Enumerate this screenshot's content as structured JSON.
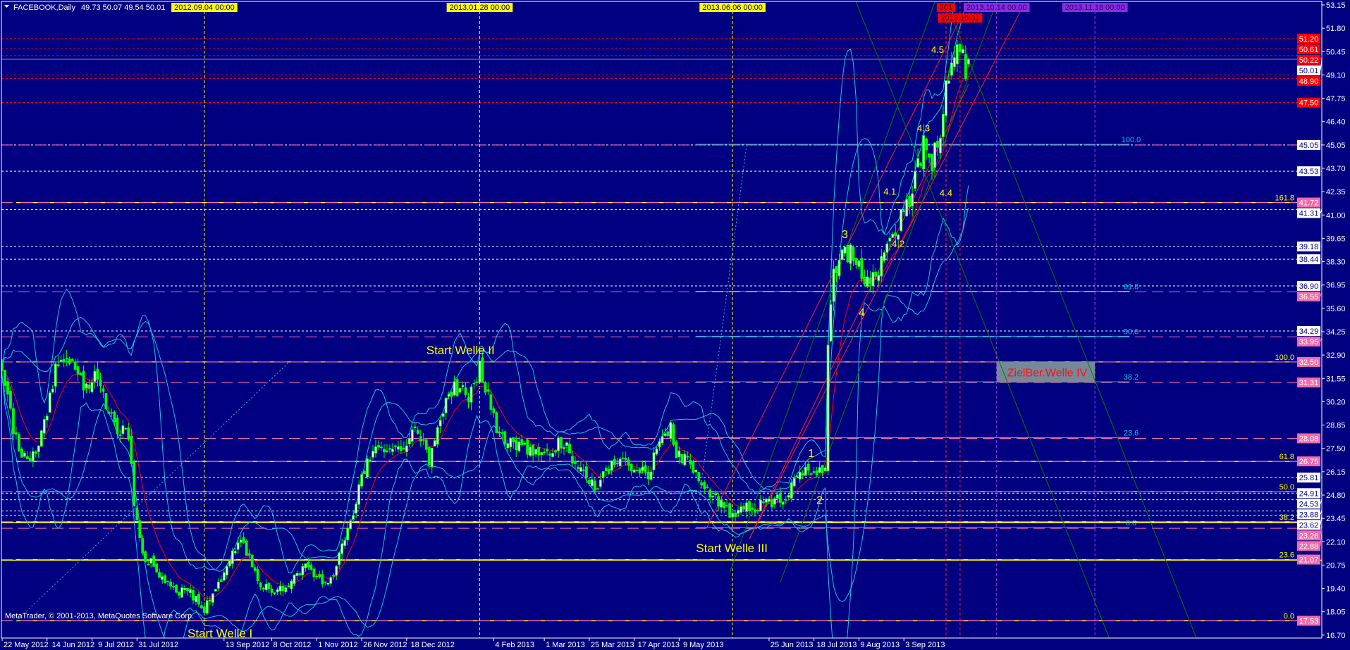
{
  "window": {
    "menu_icon": "triangle-down-icon",
    "title": "FACEBOOK,Daily",
    "ohlc": "49.73 50.07 49.54 50.01",
    "copyright": "MetaTrader, © 2001-2013, MetaQuotes Software Corp."
  },
  "colors": {
    "background": "#000080",
    "candle": "#00ff00",
    "moving_average": "#ff0000",
    "bollinger": "#20c0e0",
    "trend_red": "#ff2020",
    "trend_green": "#008000",
    "fib_pink": "#ff6eb4",
    "fib_yellow": "#ffff00",
    "fib_cyan": "#00c8f0",
    "annotation": "#ffff00",
    "target_box": "#778899",
    "target_text": "#ff1010"
  },
  "chart_data": {
    "type": "candlestick",
    "symbol": "FACEBOOK",
    "timeframe": "Daily",
    "last_bar": {
      "open": 49.73,
      "high": 50.07,
      "low": 49.54,
      "close": 50.01
    },
    "ylim": [
      16.7,
      53.15
    ],
    "grid": false,
    "price_ticks": [
      "53.15",
      "51.80",
      "50.45",
      "49.10",
      "47.75",
      "46.40",
      "45.05",
      "43.70",
      "42.35",
      "41.00",
      "39.65",
      "38.30",
      "36.95",
      "35.60",
      "34.25",
      "32.90",
      "31.55",
      "30.20",
      "28.85",
      "27.50",
      "26.15",
      "24.80",
      "23.45",
      "22.10",
      "20.75",
      "19.40",
      "18.05",
      "16.70"
    ],
    "date_ticks": [
      {
        "date": "2012-05-22",
        "label": "22 May 2012"
      },
      {
        "date": "2012-06-14",
        "label": "14 Jun 2012"
      },
      {
        "date": "2012-07-09",
        "label": "9 Jul 2012"
      },
      {
        "date": "2012-07-31",
        "label": "31 Jul 2012"
      },
      {
        "date": "2012-09-13",
        "label": "13 Sep 2012"
      },
      {
        "date": "2012-10-08",
        "label": "8 Oct 2012"
      },
      {
        "date": "2012-11-01",
        "label": "1 Nov 2012"
      },
      {
        "date": "2012-11-26",
        "label": "26 Nov 2012"
      },
      {
        "date": "2012-12-18",
        "label": "18 Dec 2012"
      },
      {
        "date": "2013-02-04",
        "label": "4 Feb 2013"
      },
      {
        "date": "2013-03-01",
        "label": "1 Mar 2013"
      },
      {
        "date": "2013-03-25",
        "label": "25 Mar 2013"
      },
      {
        "date": "2013-04-17",
        "label": "17 Apr 2013"
      },
      {
        "date": "2013-05-09",
        "label": "9 May 2013"
      },
      {
        "date": "2013-06-25",
        "label": "25 Jun 2013"
      },
      {
        "date": "2013-07-18",
        "label": "18 Jul 2013"
      },
      {
        "date": "2013-08-09",
        "label": "9 Aug 2013"
      },
      {
        "date": "2013-09-03",
        "label": "3 Sep 2013"
      }
    ],
    "close_path": [
      [
        "2012-05-22",
        32.2
      ],
      [
        "2012-05-29",
        28.5
      ],
      [
        "2012-06-04",
        26.9
      ],
      [
        "2012-06-06",
        26.6
      ],
      [
        "2012-06-12",
        28.2
      ],
      [
        "2012-06-19",
        32.0
      ],
      [
        "2012-06-27",
        32.6
      ],
      [
        "2012-07-03",
        31.3
      ],
      [
        "2012-07-11",
        31.6
      ],
      [
        "2012-07-16",
        29.8
      ],
      [
        "2012-07-20",
        28.6
      ],
      [
        "2012-07-26",
        28.4
      ],
      [
        "2012-07-30",
        24.1
      ],
      [
        "2012-08-02",
        21.4
      ],
      [
        "2012-08-08",
        20.7
      ],
      [
        "2012-08-17",
        19.3
      ],
      [
        "2012-08-27",
        19.1
      ],
      [
        "2012-09-04",
        18.2
      ],
      [
        "2012-09-07",
        18.9
      ],
      [
        "2012-09-14",
        20.7
      ],
      [
        "2012-09-21",
        22.3
      ],
      [
        "2012-10-02",
        19.7
      ],
      [
        "2012-10-09",
        19.3
      ],
      [
        "2012-10-17",
        19.7
      ],
      [
        "2012-10-25",
        20.9
      ],
      [
        "2012-10-31",
        20.0
      ],
      [
        "2012-11-07",
        19.6
      ],
      [
        "2012-11-15",
        22.1
      ],
      [
        "2012-11-21",
        24.4
      ],
      [
        "2012-11-28",
        27.0
      ],
      [
        "2012-12-07",
        27.7
      ],
      [
        "2012-12-14",
        27.4
      ],
      [
        "2012-12-24",
        28.7
      ],
      [
        "2012-12-31",
        26.6
      ],
      [
        "2013-01-08",
        29.9
      ],
      [
        "2013-01-14",
        31.0
      ],
      [
        "2013-01-22",
        30.6
      ],
      [
        "2013-01-28",
        32.1
      ],
      [
        "2013-02-01",
        29.8
      ],
      [
        "2013-02-05",
        28.5
      ],
      [
        "2013-02-12",
        27.7
      ],
      [
        "2013-02-21",
        27.4
      ],
      [
        "2013-03-01",
        27.1
      ],
      [
        "2013-03-11",
        27.9
      ],
      [
        "2013-03-18",
        26.8
      ],
      [
        "2013-03-22",
        25.6
      ],
      [
        "2013-03-28",
        25.3
      ],
      [
        "2013-04-03",
        26.2
      ],
      [
        "2013-04-10",
        27.1
      ],
      [
        "2013-04-17",
        26.4
      ],
      [
        "2013-04-24",
        26.0
      ],
      [
        "2013-05-01",
        28.2
      ],
      [
        "2013-05-06",
        28.7
      ],
      [
        "2013-05-08",
        27.1
      ],
      [
        "2013-05-15",
        26.6
      ],
      [
        "2013-05-21",
        25.7
      ],
      [
        "2013-05-28",
        24.6
      ],
      [
        "2013-06-03",
        24.4
      ],
      [
        "2013-06-05",
        23.3
      ],
      [
        "2013-06-11",
        24.1
      ],
      [
        "2013-06-14",
        24.0
      ],
      [
        "2013-06-24",
        24.4
      ],
      [
        "2013-06-28",
        24.5
      ],
      [
        "2013-07-03",
        24.6
      ],
      [
        "2013-07-09",
        25.6
      ],
      [
        "2013-07-12",
        26.2
      ],
      [
        "2013-07-16",
        26.6
      ],
      [
        "2013-07-19",
        25.9
      ],
      [
        "2013-07-24",
        26.4
      ],
      [
        "2013-07-25",
        33.6
      ],
      [
        "2013-07-26",
        35.4
      ],
      [
        "2013-07-29",
        37.8
      ],
      [
        "2013-08-02",
        38.8
      ],
      [
        "2013-08-06",
        38.8
      ],
      [
        "2013-08-09",
        38.4
      ],
      [
        "2013-08-13",
        36.9
      ],
      [
        "2013-08-16",
        37.3
      ],
      [
        "2013-08-22",
        38.4
      ],
      [
        "2013-08-26",
        40.1
      ],
      [
        "2013-08-29",
        40.4
      ],
      [
        "2013-09-03",
        41.6
      ],
      [
        "2013-09-05",
        42.0
      ],
      [
        "2013-09-10",
        43.9
      ],
      [
        "2013-09-12",
        45.0
      ],
      [
        "2013-09-17",
        43.7
      ],
      [
        "2013-09-18",
        44.6
      ],
      [
        "2013-09-20",
        45.6
      ],
      [
        "2013-09-23",
        47.2
      ],
      [
        "2013-09-25",
        49.0
      ],
      [
        "2013-09-27",
        50.2
      ],
      [
        "2013-09-30",
        51.0
      ],
      [
        "2013-10-01",
        50.2
      ],
      [
        "2013-10-02",
        50.3
      ],
      [
        "2013-10-03",
        49.4
      ],
      [
        "2013-10-04",
        50.01
      ]
    ],
    "hlines": [
      {
        "price": 51.2,
        "style": "red-dash",
        "tag": "red",
        "label": "51.20"
      },
      {
        "price": 50.61,
        "style": "red-dash",
        "tag": "red",
        "label": "50.61"
      },
      {
        "price": 50.22,
        "style": "red-dash",
        "tag": "red",
        "label": "50.22"
      },
      {
        "price": 50.01,
        "style": "gray-solid",
        "tag": "white",
        "label": "50.01"
      },
      {
        "price": 49.1,
        "style": "red-dash"
      },
      {
        "price": 48.9,
        "style": "red-dash",
        "tag": "red",
        "label": "48.90"
      },
      {
        "price": 47.5,
        "style": "red-dash-bold",
        "tag": "red",
        "label": "47.50"
      },
      {
        "price": 45.05,
        "style": "white-dash",
        "tag": "white",
        "label": "45.05"
      },
      {
        "price": 43.53,
        "style": "white-dash",
        "tag": "white",
        "label": "43.53"
      },
      {
        "price": 41.31,
        "style": "white-dash",
        "tag": "white",
        "label": "41.31"
      },
      {
        "price": 39.18,
        "style": "white-dash",
        "tag": "white",
        "label": "39.18"
      },
      {
        "price": 38.44,
        "style": "white-dash",
        "tag": "white",
        "label": "38.44"
      },
      {
        "price": 36.9,
        "style": "white-dash",
        "tag": "white",
        "label": "36.90"
      },
      {
        "price": 34.29,
        "style": "white-dash",
        "tag": "white",
        "label": "34.29"
      },
      {
        "price": 25.81,
        "style": "white-dash",
        "tag": "white",
        "label": "25.81"
      },
      {
        "price": 24.91,
        "style": "white-dash",
        "tag": "white",
        "label": "24.91"
      },
      {
        "price": 24.53,
        "style": "white-dash",
        "tag": "white",
        "label": "24.53"
      },
      {
        "price": 23.88,
        "style": "white-dash",
        "tag": "white",
        "label": "23.88"
      },
      {
        "price": 23.62,
        "style": "white-dash",
        "tag": "white",
        "label": "23.62"
      },
      {
        "price": 23.2,
        "style": "yellow-solid"
      },
      {
        "price": 21.03,
        "style": "yellow-solid"
      }
    ],
    "fibs": [
      {
        "color": "cyan",
        "start_date": "2013-05-17",
        "end_date": "2014-01-02",
        "levels": [
          {
            "level": "100.0",
            "price": 45.05
          },
          {
            "level": "61.8",
            "price": 36.55,
            "tag": "36.55"
          },
          {
            "level": "50.0",
            "price": 33.95,
            "tag": "33.95"
          },
          {
            "level": "38.2",
            "price": 31.31,
            "tag": "31.31"
          },
          {
            "level": "23.6",
            "price": 28.08,
            "tag": "28.08"
          },
          {
            "level": "0.0",
            "price": 22.88,
            "tag": "22.88"
          }
        ]
      },
      {
        "color": "yellow",
        "start_date": "2012-05-30",
        "end_date": "2014-02-05",
        "levels": [
          {
            "level": "161.8",
            "price": 41.72,
            "tag": "41.72"
          },
          {
            "level": "100.0",
            "price": 32.5,
            "tag": "32.50"
          },
          {
            "level": "61.8",
            "price": 26.75,
            "tag": "26.75"
          },
          {
            "level": "50.0",
            "price": 25.0
          },
          {
            "level": "38.2",
            "price": 23.26,
            "tag": "23.26"
          },
          {
            "level": "23.6",
            "price": 21.07,
            "tag": "21.07"
          },
          {
            "level": "0.0",
            "price": 17.53,
            "tag": "17.53"
          }
        ]
      }
    ],
    "vlines": [
      {
        "date": "2012-09-04",
        "color": "yellow",
        "label": "2012.09.04 00:00"
      },
      {
        "date": "2013-01-28",
        "color": "yellow",
        "label": "2013.01.28 00:00"
      },
      {
        "date": "2013-06-06",
        "color": "yellow",
        "label": "2013.06.06 00:00"
      },
      {
        "date": "2013-09-24",
        "color": "red",
        "label": "201"
      },
      {
        "date": "2013-10-01",
        "color": "red",
        "label": "2013.10.01"
      },
      {
        "date": "2013-10-14",
        "color": "purple",
        "label": "2013.10.14 00:00"
      },
      {
        "date": "2013-11-18",
        "color": "purple",
        "label": "2013.11.18 00:00"
      }
    ],
    "trendlines": [
      {
        "color": "red",
        "from": [
          "2013-05-23",
          22.97
        ],
        "to": [
          "2013-10-04",
          53.31
        ]
      },
      {
        "color": "red",
        "from": [
          "2013-06-14",
          22.28
        ],
        "to": [
          "2013-10-24",
          53.27
        ]
      },
      {
        "color": "red",
        "from": [
          "2013-06-14",
          22.28
        ],
        "to": [
          "2013-10-04",
          48.55
        ]
      },
      {
        "color": "green",
        "from": [
          "2013-06-05",
          20.32
        ],
        "to": [
          "2013-09-18",
          53.31
        ]
      },
      {
        "color": "green",
        "from": [
          "2013-07-01",
          19.75
        ],
        "to": [
          "2013-10-14",
          53.31
        ]
      },
      {
        "color": "green",
        "from": [
          "2013-08-08",
          53.31
        ],
        "to": [
          "2013-11-23",
          16.57
        ]
      },
      {
        "color": "green",
        "from": [
          "2013-09-24",
          53.31
        ],
        "to": [
          "2013-12-24",
          16.57
        ]
      },
      {
        "color": "cyan-dotted",
        "from": [
          "2013-05-17",
          23.17
        ],
        "to": [
          "2013-06-13",
          45.0
        ]
      },
      {
        "color": "cyan-dotted",
        "from": [
          "2012-05-30",
          17.51
        ],
        "to": [
          "2012-10-16",
          32.46
        ]
      }
    ],
    "annotations": [
      {
        "text": "Start Welle I",
        "date": "2012-08-24",
        "price": 16.82,
        "size": "large",
        "anchor": "start"
      },
      {
        "text": "Start Welle II",
        "date": "2012-12-28",
        "price": 33.19,
        "size": "large",
        "anchor": "start"
      },
      {
        "text": "Start Welle III",
        "date": "2013-05-17",
        "price": 21.74,
        "size": "large",
        "anchor": "start"
      },
      {
        "text": "1",
        "date": "2013-07-17",
        "price": 27.24,
        "size": "medium",
        "anchor": "middle"
      },
      {
        "text": "2",
        "date": "2013-07-22",
        "price": 24.52,
        "size": "medium",
        "anchor": "middle"
      },
      {
        "text": "3",
        "date": "2013-08-02",
        "price": 39.91,
        "size": "medium",
        "anchor": "middle"
      },
      {
        "text": "4",
        "date": "2013-08-12",
        "price": 35.39,
        "size": "medium",
        "anchor": "middle"
      },
      {
        "text": "4.1",
        "date": "2013-08-26",
        "price": 42.36,
        "size": "small",
        "anchor": "middle"
      },
      {
        "text": "4.2",
        "date": "2013-08-29",
        "price": 39.34,
        "size": "small",
        "anchor": "middle"
      },
      {
        "text": "4.3",
        "date": "2013-09-12",
        "price": 46.02,
        "size": "small",
        "anchor": "middle"
      },
      {
        "text": "4.4",
        "date": "2013-09-24",
        "price": 42.28,
        "size": "small",
        "anchor": "middle"
      },
      {
        "text": "4.5",
        "date": "2013-09-19",
        "price": 50.58,
        "size": "small",
        "anchor": "middle"
      }
    ],
    "target_box": {
      "text": "ZielBer.Welle IV",
      "from_date": "2013-10-14",
      "to_date": "2013-11-18",
      "price_high": 32.5,
      "price_low": 31.31
    }
  }
}
